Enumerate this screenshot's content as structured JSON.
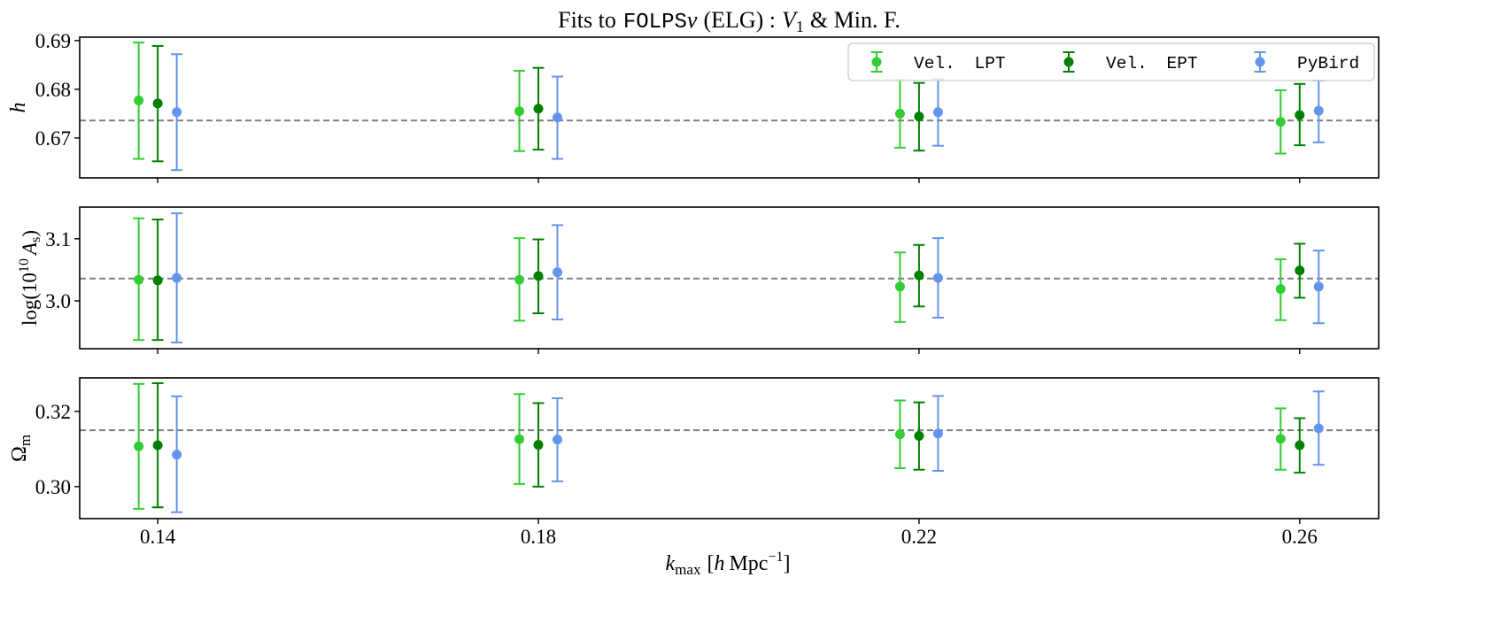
{
  "chart_data": {
    "type": "scatter",
    "title": {
      "lead": "Fits to",
      "code": "FOLPS",
      "nu": "ν",
      "sample": "(ELG) :",
      "v": "V",
      "v_sub": "1",
      "tail": "& Min. F."
    },
    "x": [
      0.14,
      0.18,
      0.22,
      0.26
    ],
    "x_tick_labels": [
      "0.14",
      "0.18",
      "0.22",
      "0.26"
    ],
    "xlim": [
      0.1318,
      0.2683
    ],
    "xlabel": {
      "var": "k",
      "sub": "max",
      "open": "[",
      "h": "h",
      "unit": "Mpc",
      "exp": "−1",
      "close": "]"
    },
    "grid": false,
    "legend_position": "top-right",
    "reference_color": "#808080",
    "panels": [
      {
        "ylabel": {
          "var": "h"
        },
        "ylim": [
          0.6618,
          0.6907
        ],
        "yticks": [
          0.67,
          0.68,
          0.69
        ],
        "ytick_labels": [
          "0.67",
          "0.68",
          "0.69"
        ],
        "reference": 0.6736
      },
      {
        "ylabel": {
          "pre": "log(10",
          "exp": "10",
          "var": "A",
          "sub": "s",
          "post": ")"
        },
        "ylim": [
          2.923,
          3.151
        ],
        "yticks": [
          3.0,
          3.1
        ],
        "ytick_labels": [
          "3.0",
          "3.1"
        ],
        "reference": 3.036
      },
      {
        "ylabel": {
          "var": "Ω",
          "sub": "m"
        },
        "ylim": [
          0.2915,
          0.3289
        ],
        "yticks": [
          0.3,
          0.32
        ],
        "ytick_labels": [
          "0.30",
          "0.32"
        ],
        "reference": 0.315
      }
    ],
    "series": [
      {
        "name": "Vel. LPT",
        "color": "#32CD32",
        "panels": [
          {
            "y": [
              0.6777,
              0.6755,
              0.675,
              0.6733
            ],
            "lo": [
              0.6657,
              0.6673,
              0.668,
              0.6668
            ],
            "hi": [
              0.6896,
              0.6838,
              0.6819,
              0.6798
            ]
          },
          {
            "y": [
              3.034,
              3.034,
              3.023,
              3.019
            ],
            "lo": [
              2.937,
              2.968,
              2.966,
              2.969
            ],
            "hi": [
              3.133,
              3.101,
              3.078,
              3.067
            ]
          },
          {
            "y": [
              0.3107,
              0.3126,
              0.3139,
              0.3127
            ],
            "lo": [
              0.2941,
              0.3007,
              0.3049,
              0.3045
            ],
            "hi": [
              0.3273,
              0.3246,
              0.3229,
              0.3208
            ]
          }
        ]
      },
      {
        "name": "Vel. EPT",
        "color": "#008000",
        "panels": [
          {
            "y": [
              0.6771,
              0.676,
              0.6744,
              0.6747
            ],
            "lo": [
              0.6652,
              0.6676,
              0.6674,
              0.6685
            ],
            "hi": [
              0.6889,
              0.6844,
              0.6813,
              0.6811
            ]
          },
          {
            "y": [
              3.033,
              3.04,
              3.041,
              3.049
            ],
            "lo": [
              2.937,
              2.98,
              2.991,
              3.005
            ],
            "hi": [
              3.131,
              3.099,
              3.09,
              3.092
            ]
          },
          {
            "y": [
              0.311,
              0.3111,
              0.3135,
              0.311
            ],
            "lo": [
              0.2945,
              0.3,
              0.3045,
              0.3037
            ],
            "hi": [
              0.3275,
              0.3222,
              0.3224,
              0.3182
            ]
          }
        ]
      },
      {
        "name": "PyBird",
        "color": "#6495ED",
        "panels": [
          {
            "y": [
              0.6753,
              0.6742,
              0.6753,
              0.6756
            ],
            "lo": [
              0.6634,
              0.6657,
              0.6684,
              0.6691
            ],
            "hi": [
              0.6872,
              0.6826,
              0.6821,
              0.6818
            ]
          },
          {
            "y": [
              3.037,
              3.046,
              3.037,
              3.023
            ],
            "lo": [
              2.933,
              2.97,
              2.973,
              2.964
            ],
            "hi": [
              3.141,
              3.122,
              3.101,
              3.081
            ]
          },
          {
            "y": [
              0.3085,
              0.3125,
              0.3141,
              0.3155
            ],
            "lo": [
              0.2932,
              0.3014,
              0.3042,
              0.3058
            ],
            "hi": [
              0.324,
              0.3235,
              0.3241,
              0.3253
            ]
          }
        ]
      }
    ]
  }
}
